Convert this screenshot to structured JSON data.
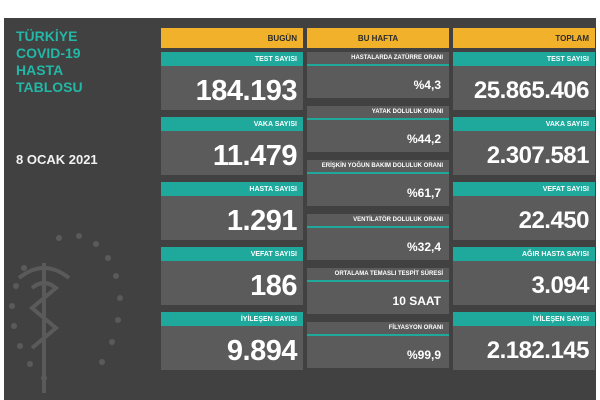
{
  "title_lines": "TÜRKİYE\nCOVID-19\nHASTA\nTABLOSU",
  "date": "8 OCAK 2021",
  "headers": {
    "today": "BUGÜN",
    "week": "BU HAFTA",
    "total": "TOPLAM"
  },
  "today": [
    {
      "label": "TEST SAYISI",
      "value": "184.193"
    },
    {
      "label": "VAKA SAYISI",
      "value": "11.479"
    },
    {
      "label": "HASTA SAYISI",
      "value": "1.291"
    },
    {
      "label": "VEFAT SAYISI",
      "value": "186"
    },
    {
      "label": "İYİLEŞEN SAYISI",
      "value": "9.894"
    }
  ],
  "week": [
    {
      "label": "HASTALARDA ZATÜRRE ORANI",
      "value": "%4,3"
    },
    {
      "label": "YATAK DOLULUK ORANI",
      "value": "%44,2"
    },
    {
      "label": "ERİŞKİN YOĞUN BAKIM DOLULUK ORANI",
      "value": "%61,7"
    },
    {
      "label": "VENTİLATÖR DOLULUK ORANI",
      "value": "%32,4"
    },
    {
      "label": "ORTALAMA TEMASLI TESPİT SÜRESİ",
      "value": "10 SAAT"
    },
    {
      "label": "FİLYASYON ORANI",
      "value": "%99,9"
    }
  ],
  "total": [
    {
      "label": "TEST SAYISI",
      "value": "25.865.406"
    },
    {
      "label": "VAKA SAYISI",
      "value": "2.307.581"
    },
    {
      "label": "VEFAT SAYISI",
      "value": "22.450"
    },
    {
      "label": "AĞIR HASTA SAYISI",
      "value": "3.094"
    },
    {
      "label": "İYİLEŞEN SAYISI",
      "value": "2.182.145"
    }
  ],
  "colors": {
    "background": "#414141",
    "card": "#5b5b5b",
    "accent_teal": "#1fa99c",
    "header_yellow": "#f2b12a",
    "title_teal": "#22b7a6"
  },
  "icons": {
    "emblem": "ministry-of-health-emblem-icon"
  }
}
